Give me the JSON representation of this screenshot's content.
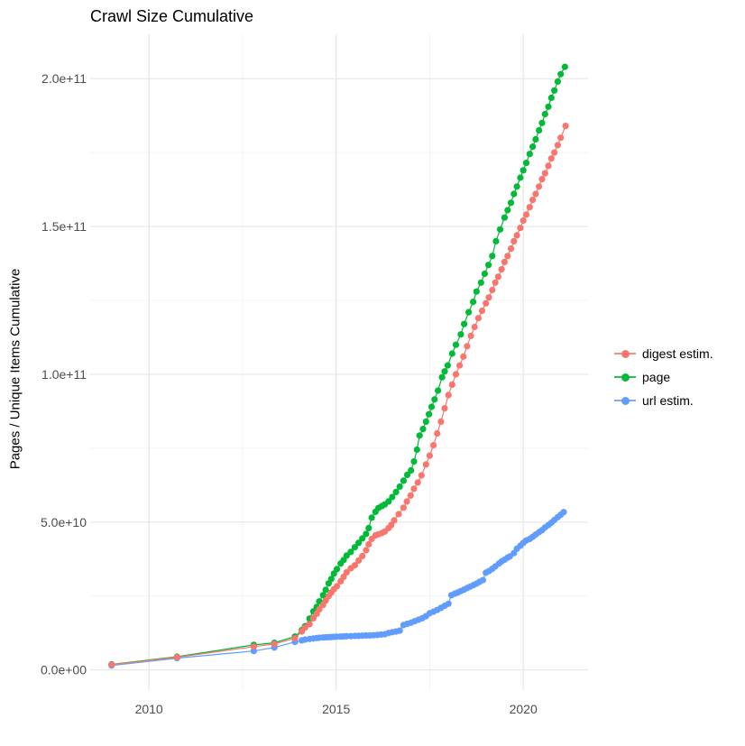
{
  "chart_data": {
    "type": "line",
    "title": "Crawl Size Cumulative",
    "xlabel": "",
    "ylabel": "Pages / Unique Items Cumulative",
    "legend_position": "right",
    "grid": true,
    "values_unit": "counts; point y-values stored in billions (1e9)",
    "xlim": [
      2008.43,
      2021.73
    ],
    "ylim_billions": [
      -6.8,
      215
    ],
    "x_ticks": [
      {
        "value": 2010,
        "label": "2010"
      },
      {
        "value": 2015,
        "label": "2015"
      },
      {
        "value": 2020,
        "label": "2020"
      }
    ],
    "x_minor": [
      2012.5,
      2017.5
    ],
    "y_ticks": [
      {
        "value_billions": 0,
        "label": "0.0e+00"
      },
      {
        "value_billions": 50,
        "label": "5.0e+10"
      },
      {
        "value_billions": 100,
        "label": "1.0e+11"
      },
      {
        "value_billions": 150,
        "label": "1.5e+11"
      },
      {
        "value_billions": 200,
        "label": "2.0e+11"
      }
    ],
    "y_minor_billions": [
      25,
      75,
      125,
      175
    ],
    "series": [
      {
        "name": "digest estim.",
        "color": "#F8766D",
        "points_year_billions": [
          [
            2009.0,
            1.8
          ],
          [
            2010.75,
            4.3
          ],
          [
            2012.8,
            7.9
          ],
          [
            2013.35,
            8.8
          ],
          [
            2013.9,
            10.7
          ],
          [
            2014.08,
            13.0
          ],
          [
            2014.17,
            14.3
          ],
          [
            2014.29,
            15.5
          ],
          [
            2014.39,
            17.5
          ],
          [
            2014.48,
            19.0
          ],
          [
            2014.55,
            20.5
          ],
          [
            2014.65,
            22.0
          ],
          [
            2014.72,
            23.5
          ],
          [
            2014.8,
            25.0
          ],
          [
            2014.87,
            26.2
          ],
          [
            2014.94,
            27.3
          ],
          [
            2015.02,
            28.3
          ],
          [
            2015.12,
            30.0
          ],
          [
            2015.2,
            31.5
          ],
          [
            2015.28,
            33.0
          ],
          [
            2015.39,
            34.4
          ],
          [
            2015.5,
            35.4
          ],
          [
            2015.6,
            37.0
          ],
          [
            2015.7,
            38.5
          ],
          [
            2015.8,
            40.5
          ],
          [
            2015.87,
            42.5
          ],
          [
            2015.95,
            44.3
          ],
          [
            2016.05,
            45.5
          ],
          [
            2016.13,
            45.9
          ],
          [
            2016.22,
            46.3
          ],
          [
            2016.3,
            46.8
          ],
          [
            2016.4,
            48.0
          ],
          [
            2016.47,
            49.0
          ],
          [
            2016.55,
            50.6
          ],
          [
            2016.67,
            52.7
          ],
          [
            2016.8,
            54.9
          ],
          [
            2016.89,
            57.0
          ],
          [
            2016.99,
            59.0
          ],
          [
            2017.08,
            61.3
          ],
          [
            2017.18,
            63.4
          ],
          [
            2017.28,
            65.8
          ],
          [
            2017.4,
            69.5
          ],
          [
            2017.5,
            72.5
          ],
          [
            2017.6,
            76.0
          ],
          [
            2017.7,
            80.0
          ],
          [
            2017.8,
            84.0
          ],
          [
            2017.9,
            88.5
          ],
          [
            2018.0,
            93.0
          ],
          [
            2018.1,
            96.5
          ],
          [
            2018.2,
            100.0
          ],
          [
            2018.3,
            103.0
          ],
          [
            2018.4,
            106.0
          ],
          [
            2018.5,
            109.5
          ],
          [
            2018.6,
            113.0
          ],
          [
            2018.7,
            116.0
          ],
          [
            2018.8,
            119.0
          ],
          [
            2018.9,
            121.5
          ],
          [
            2019.0,
            124.0
          ],
          [
            2019.08,
            126.0
          ],
          [
            2019.17,
            128.5
          ],
          [
            2019.25,
            131.0
          ],
          [
            2019.33,
            133.0
          ],
          [
            2019.42,
            135.5
          ],
          [
            2019.5,
            138.0
          ],
          [
            2019.58,
            140.0
          ],
          [
            2019.67,
            142.5
          ],
          [
            2019.75,
            145.0
          ],
          [
            2019.83,
            147.0
          ],
          [
            2019.92,
            149.5
          ],
          [
            2020.0,
            152.0
          ],
          [
            2020.08,
            154.0
          ],
          [
            2020.17,
            156.5
          ],
          [
            2020.25,
            159.0
          ],
          [
            2020.33,
            161.0
          ],
          [
            2020.42,
            163.5
          ],
          [
            2020.5,
            166.0
          ],
          [
            2020.58,
            168.0
          ],
          [
            2020.67,
            170.5
          ],
          [
            2020.75,
            173.0
          ],
          [
            2020.83,
            175.0
          ],
          [
            2020.92,
            177.5
          ],
          [
            2021.0,
            180.0
          ],
          [
            2021.13,
            184.0
          ]
        ]
      },
      {
        "name": "page",
        "color": "#00BA38",
        "points_year_billions": [
          [
            2009.0,
            1.9
          ],
          [
            2010.75,
            4.5
          ],
          [
            2012.8,
            8.5
          ],
          [
            2013.35,
            9.2
          ],
          [
            2013.9,
            11.3
          ],
          [
            2014.08,
            13.5
          ],
          [
            2014.17,
            14.8
          ],
          [
            2014.29,
            17.4
          ],
          [
            2014.39,
            19.8
          ],
          [
            2014.48,
            21.3
          ],
          [
            2014.55,
            23.2
          ],
          [
            2014.65,
            25.3
          ],
          [
            2014.72,
            27.1
          ],
          [
            2014.8,
            29.3
          ],
          [
            2014.87,
            30.8
          ],
          [
            2014.94,
            32.6
          ],
          [
            2015.02,
            34.1
          ],
          [
            2015.12,
            36.0
          ],
          [
            2015.2,
            37.2
          ],
          [
            2015.28,
            38.7
          ],
          [
            2015.39,
            39.9
          ],
          [
            2015.5,
            41.5
          ],
          [
            2015.6,
            43.0
          ],
          [
            2015.7,
            44.5
          ],
          [
            2015.8,
            46.0
          ],
          [
            2015.87,
            48.0
          ],
          [
            2015.95,
            51.5
          ],
          [
            2016.05,
            53.5
          ],
          [
            2016.13,
            54.8
          ],
          [
            2016.22,
            55.4
          ],
          [
            2016.3,
            56.0
          ],
          [
            2016.4,
            57.0
          ],
          [
            2016.5,
            58.5
          ],
          [
            2016.6,
            60.2
          ],
          [
            2016.7,
            62.0
          ],
          [
            2016.8,
            64.0
          ],
          [
            2016.9,
            66.0
          ],
          [
            2017.0,
            67.5
          ],
          [
            2017.08,
            70.5
          ],
          [
            2017.16,
            74.5
          ],
          [
            2017.23,
            79.3
          ],
          [
            2017.32,
            81.5
          ],
          [
            2017.4,
            84.0
          ],
          [
            2017.48,
            86.5
          ],
          [
            2017.55,
            89.0
          ],
          [
            2017.63,
            91.5
          ],
          [
            2017.72,
            94.5
          ],
          [
            2017.83,
            99.0
          ],
          [
            2017.9,
            101.0
          ],
          [
            2017.98,
            103.0
          ],
          [
            2018.1,
            107.0
          ],
          [
            2018.2,
            110.0
          ],
          [
            2018.33,
            113.5
          ],
          [
            2018.42,
            117.0
          ],
          [
            2018.54,
            121.0
          ],
          [
            2018.66,
            124.5
          ],
          [
            2018.75,
            128.0
          ],
          [
            2018.87,
            131.0
          ],
          [
            2018.97,
            134.0
          ],
          [
            2019.07,
            137.0
          ],
          [
            2019.17,
            140.0
          ],
          [
            2019.27,
            145.0
          ],
          [
            2019.38,
            149.0
          ],
          [
            2019.5,
            153.0
          ],
          [
            2019.58,
            155.5
          ],
          [
            2019.67,
            158.0
          ],
          [
            2019.75,
            161.0
          ],
          [
            2019.83,
            163.5
          ],
          [
            2019.92,
            166.5
          ],
          [
            2020.0,
            169.0
          ],
          [
            2020.08,
            171.5
          ],
          [
            2020.17,
            174.5
          ],
          [
            2020.25,
            177.0
          ],
          [
            2020.33,
            179.5
          ],
          [
            2020.42,
            182.5
          ],
          [
            2020.5,
            185.0
          ],
          [
            2020.58,
            188.0
          ],
          [
            2020.67,
            190.5
          ],
          [
            2020.75,
            193.5
          ],
          [
            2020.83,
            196.0
          ],
          [
            2020.92,
            199.0
          ],
          [
            2021.0,
            201.5
          ],
          [
            2021.11,
            204.0
          ]
        ]
      },
      {
        "name": "url estim.",
        "color": "#619CFF",
        "points_year_billions": [
          [
            2009.0,
            1.5
          ],
          [
            2010.75,
            4.0
          ],
          [
            2012.8,
            6.4
          ],
          [
            2013.35,
            7.6
          ],
          [
            2013.9,
            9.5
          ],
          [
            2014.08,
            10.0
          ],
          [
            2014.17,
            10.3
          ],
          [
            2014.29,
            10.5
          ],
          [
            2014.39,
            10.65
          ],
          [
            2014.48,
            10.8
          ],
          [
            2014.55,
            10.9
          ],
          [
            2014.65,
            11.0
          ],
          [
            2014.72,
            11.05
          ],
          [
            2014.8,
            11.1
          ],
          [
            2014.87,
            11.15
          ],
          [
            2014.94,
            11.2
          ],
          [
            2015.02,
            11.25
          ],
          [
            2015.12,
            11.3
          ],
          [
            2015.2,
            11.35
          ],
          [
            2015.28,
            11.4
          ],
          [
            2015.39,
            11.45
          ],
          [
            2015.5,
            11.5
          ],
          [
            2015.6,
            11.55
          ],
          [
            2015.7,
            11.6
          ],
          [
            2015.8,
            11.65
          ],
          [
            2015.9,
            11.7
          ],
          [
            2016.0,
            11.75
          ],
          [
            2016.1,
            11.85
          ],
          [
            2016.2,
            11.95
          ],
          [
            2016.3,
            12.1
          ],
          [
            2016.4,
            12.5
          ],
          [
            2016.5,
            12.8
          ],
          [
            2016.6,
            13.0
          ],
          [
            2016.7,
            13.3
          ],
          [
            2016.8,
            15.2
          ],
          [
            2016.9,
            15.6
          ],
          [
            2017.0,
            16.0
          ],
          [
            2017.1,
            16.5
          ],
          [
            2017.2,
            17.0
          ],
          [
            2017.3,
            17.5
          ],
          [
            2017.4,
            18.2
          ],
          [
            2017.5,
            19.2
          ],
          [
            2017.6,
            19.7
          ],
          [
            2017.7,
            20.3
          ],
          [
            2017.8,
            21.0
          ],
          [
            2017.9,
            21.7
          ],
          [
            2018.0,
            22.4
          ],
          [
            2018.08,
            25.3
          ],
          [
            2018.17,
            25.8
          ],
          [
            2018.25,
            26.2
          ],
          [
            2018.33,
            26.7
          ],
          [
            2018.42,
            27.2
          ],
          [
            2018.5,
            27.7
          ],
          [
            2018.58,
            28.2
          ],
          [
            2018.67,
            28.7
          ],
          [
            2018.75,
            29.2
          ],
          [
            2018.83,
            29.8
          ],
          [
            2018.92,
            30.4
          ],
          [
            2019.0,
            32.9
          ],
          [
            2019.08,
            33.4
          ],
          [
            2019.17,
            34.2
          ],
          [
            2019.25,
            35.0
          ],
          [
            2019.35,
            36.0
          ],
          [
            2019.42,
            36.7
          ],
          [
            2019.5,
            37.3
          ],
          [
            2019.58,
            38.0
          ],
          [
            2019.64,
            38.4
          ],
          [
            2019.75,
            39.5
          ],
          [
            2019.83,
            41.0
          ],
          [
            2019.92,
            42.0
          ],
          [
            2020.0,
            43.0
          ],
          [
            2020.08,
            43.8
          ],
          [
            2020.17,
            44.3
          ],
          [
            2020.25,
            45.0
          ],
          [
            2020.33,
            45.8
          ],
          [
            2020.42,
            46.6
          ],
          [
            2020.5,
            47.3
          ],
          [
            2020.58,
            48.2
          ],
          [
            2020.67,
            49.0
          ],
          [
            2020.75,
            49.8
          ],
          [
            2020.83,
            50.7
          ],
          [
            2020.92,
            51.7
          ],
          [
            2021.0,
            52.5
          ],
          [
            2021.08,
            53.4
          ]
        ]
      }
    ]
  }
}
